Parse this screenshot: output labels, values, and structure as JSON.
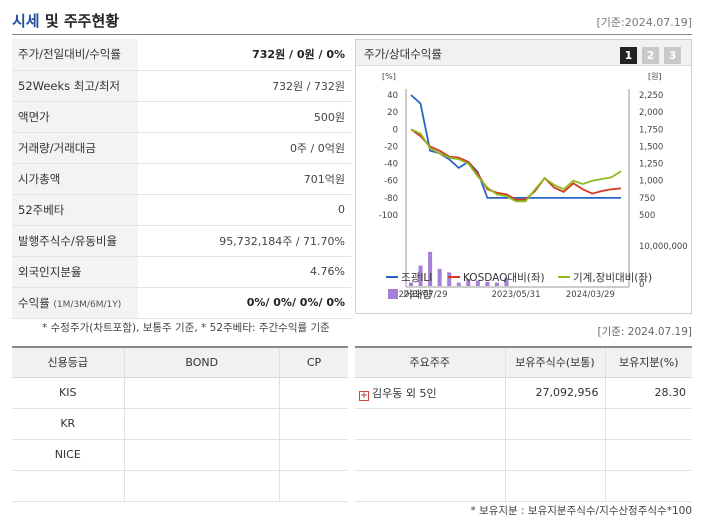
{
  "header": {
    "title_accent": "시세",
    "title_rest": " 및 주주현황",
    "date": "[기준:2024.07.19]"
  },
  "info_rows": [
    {
      "label": "주가/전일대비/수익률",
      "value": "732원 / 0원 / 0%",
      "strong": true
    },
    {
      "label": "52Weeks 최고/최저",
      "value": "732원 / 732원"
    },
    {
      "label": "액면가",
      "value": "500원"
    },
    {
      "label": "거래량/거래대금",
      "value": "0주 / 0억원"
    },
    {
      "label": "시가총액",
      "value": "701억원"
    },
    {
      "label": "52주베타",
      "value": "0"
    },
    {
      "label": "발행주식수/유동비율",
      "value": "95,732,184주 / 71.70%"
    },
    {
      "label": "외국인지분율",
      "value": "4.76%"
    },
    {
      "label": "수익률",
      "label_sub": "(1M/3M/6M/1Y)",
      "value": "0%/ 0%/ 0%/ 0%",
      "strong": true
    }
  ],
  "chart_panel": {
    "title": "주가/상대수익률",
    "tabs": [
      "1",
      "2",
      "3"
    ],
    "active_tab": 0
  },
  "chart_data": {
    "type": "line",
    "left_axis_unit": "[%]",
    "right_axis_unit": "[원]",
    "left_ticks": [
      40,
      20,
      0,
      -20,
      -40,
      -60,
      -80,
      -100
    ],
    "right_ticks": [
      "2,250",
      "2,000",
      "1,750",
      "1,500",
      "1,250",
      "1,000",
      "750",
      "500"
    ],
    "volume_ticks": [
      "10,000,000",
      "0"
    ],
    "x_ticks": [
      "2022/07/29",
      "2023/05/31",
      "2024/03/29"
    ],
    "left_ylim": [
      -100,
      40
    ],
    "series": [
      {
        "name": "조광ILI",
        "color": "#2a63c6",
        "values": [
          40,
          30,
          -25,
          -28,
          -35,
          -45,
          -38,
          -50,
          -80,
          -80,
          -80,
          -80,
          -80,
          -80,
          -80,
          -80,
          -80,
          -80,
          -80,
          -80,
          -80,
          -80,
          -80
        ]
      },
      {
        "name": "KOSDAQ대비(좌)",
        "color": "#d23a1f",
        "values": [
          0,
          -8,
          -20,
          -25,
          -32,
          -33,
          -38,
          -52,
          -70,
          -74,
          -76,
          -82,
          -82,
          -72,
          -57,
          -68,
          -73,
          -63,
          -70,
          -75,
          -72,
          -70,
          -69
        ]
      },
      {
        "name": "기계,장비대비(좌)",
        "color": "#8cbd1f",
        "values": [
          0,
          -5,
          -22,
          -28,
          -33,
          -35,
          -40,
          -55,
          -68,
          -76,
          -78,
          -84,
          -84,
          -70,
          -57,
          -65,
          -70,
          -60,
          -64,
          -60,
          -58,
          -56,
          -49
        ]
      }
    ],
    "volume": {
      "name": "거래량",
      "color": "#a57fd6",
      "values": [
        0.05,
        0.3,
        0.5,
        0.25,
        0.2,
        0.05,
        0.1,
        0.08,
        0.06,
        0.05,
        0.12,
        0,
        0,
        0,
        0,
        0,
        0,
        0,
        0,
        0,
        0,
        0,
        0
      ]
    }
  },
  "notes": {
    "left": "* 수정주가(차트포함), 보통주 기준, * 52주베타: 주간수익률 기준",
    "right_date": "[기준: 2024.07.19]",
    "footer": "* 보유지분 : 보유지분주식수/지수산정주식수*100"
  },
  "credit": {
    "headers": [
      "신용등급",
      "BOND",
      "CP"
    ],
    "rows": [
      [
        "KIS",
        "",
        ""
      ],
      [
        "KR",
        "",
        ""
      ],
      [
        "NICE",
        "",
        ""
      ],
      [
        "",
        "",
        ""
      ]
    ]
  },
  "holders": {
    "headers": [
      "주요주주",
      "보유주식수(보통)",
      "보유지분(%)"
    ],
    "rows": [
      {
        "name": "김우동 외 5인",
        "shares": "27,092,956",
        "pct": "28.30"
      },
      {
        "name": "",
        "shares": "",
        "pct": ""
      },
      {
        "name": "",
        "shares": "",
        "pct": ""
      },
      {
        "name": "",
        "shares": "",
        "pct": ""
      }
    ]
  }
}
